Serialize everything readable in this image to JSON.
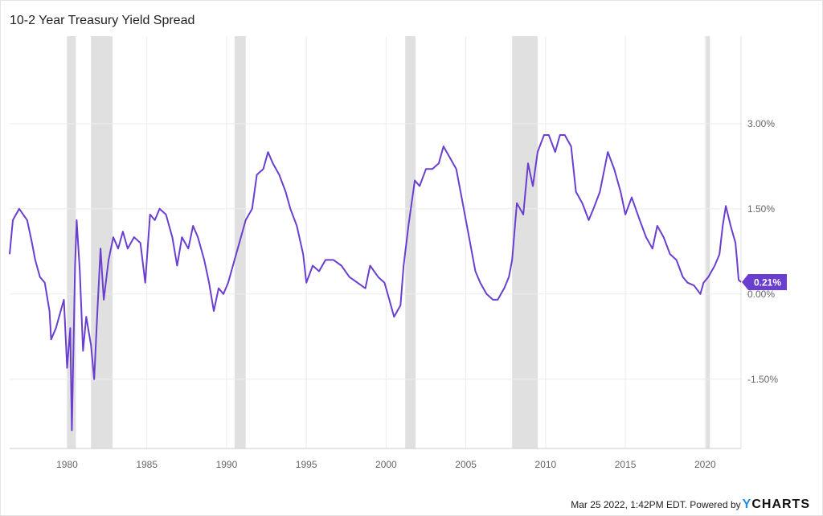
{
  "chart_data": {
    "type": "line",
    "title": "10-2 Year Treasury Yield Spread",
    "xlabel": "",
    "ylabel": "",
    "xlim": [
      1976.4,
      2022.25
    ],
    "ylim": [
      -2.72,
      4.54
    ],
    "x_ticks": [
      1980,
      1985,
      1990,
      1995,
      2000,
      2005,
      2010,
      2015,
      2020
    ],
    "x_tick_labels": [
      "1980",
      "1985",
      "1990",
      "1995",
      "2000",
      "2005",
      "2010",
      "2015",
      "2020"
    ],
    "y_ticks": [
      3,
      1.5,
      0,
      -1.5
    ],
    "y_tick_labels": [
      "3.00%",
      "1.50%",
      "0.00%",
      "-1.50%"
    ],
    "grid": true,
    "line_color": "#6a3fd0",
    "recession_color": "#e0e0e0",
    "recessions": [
      [
        1980.0,
        1980.55
      ],
      [
        1981.5,
        1982.85
      ],
      [
        1990.5,
        1991.2
      ],
      [
        2001.2,
        2001.85
      ],
      [
        2007.9,
        2009.5
      ],
      [
        2020.05,
        2020.3
      ]
    ],
    "last_value_label": "0.21%",
    "last_value": 0.21,
    "series": [
      {
        "name": "10-2 Year Treasury Yield Spread",
        "x": [
          1976.4,
          1976.6,
          1977.0,
          1977.5,
          1977.8,
          1978.0,
          1978.3,
          1978.6,
          1978.9,
          1979.0,
          1979.3,
          1979.6,
          1979.8,
          1980.0,
          1980.2,
          1980.3,
          1980.5,
          1980.6,
          1980.8,
          1981.0,
          1981.2,
          1981.5,
          1981.7,
          1981.9,
          1982.1,
          1982.3,
          1982.6,
          1982.9,
          1983.2,
          1983.5,
          1983.8,
          1984.2,
          1984.6,
          1984.9,
          1985.2,
          1985.5,
          1985.8,
          1986.2,
          1986.6,
          1986.9,
          1987.2,
          1987.6,
          1987.9,
          1988.2,
          1988.6,
          1988.9,
          1989.2,
          1989.5,
          1989.8,
          1990.1,
          1990.5,
          1990.8,
          1991.2,
          1991.6,
          1991.9,
          1992.3,
          1992.6,
          1992.9,
          1993.3,
          1993.7,
          1994.0,
          1994.4,
          1994.8,
          1995.0,
          1995.4,
          1995.8,
          1996.2,
          1996.7,
          1997.2,
          1997.7,
          1998.2,
          1998.7,
          1999.0,
          1999.5,
          1999.9,
          2000.2,
          2000.5,
          2000.9,
          2001.1,
          2001.4,
          2001.8,
          2002.1,
          2002.5,
          2002.9,
          2003.3,
          2003.6,
          2004.0,
          2004.4,
          2004.8,
          2005.2,
          2005.6,
          2005.9,
          2006.3,
          2006.7,
          2007.0,
          2007.4,
          2007.7,
          2007.9,
          2008.2,
          2008.6,
          2008.9,
          2009.2,
          2009.5,
          2009.9,
          2010.2,
          2010.6,
          2010.9,
          2011.2,
          2011.6,
          2011.9,
          2012.3,
          2012.7,
          2013.0,
          2013.4,
          2013.9,
          2014.3,
          2014.7,
          2015.0,
          2015.4,
          2015.9,
          2016.3,
          2016.7,
          2017.0,
          2017.4,
          2017.8,
          2018.2,
          2018.6,
          2018.9,
          2019.3,
          2019.7,
          2019.9,
          2020.2,
          2020.6,
          2020.9,
          2021.1,
          2021.3,
          2021.6,
          2021.9,
          2022.0,
          2022.1,
          2022.25
        ],
        "values": [
          0.7,
          1.3,
          1.5,
          1.3,
          0.9,
          0.6,
          0.3,
          0.2,
          -0.3,
          -0.8,
          -0.6,
          -0.3,
          -0.1,
          -1.3,
          -0.6,
          -2.4,
          0.5,
          1.3,
          0.4,
          -1.0,
          -0.4,
          -0.9,
          -1.5,
          -0.3,
          0.8,
          -0.1,
          0.6,
          1.0,
          0.8,
          1.1,
          0.8,
          1.0,
          0.9,
          0.2,
          1.4,
          1.3,
          1.5,
          1.4,
          1.0,
          0.5,
          1.0,
          0.8,
          1.2,
          1.0,
          0.6,
          0.2,
          -0.3,
          0.1,
          0.0,
          0.2,
          0.6,
          0.9,
          1.3,
          1.5,
          2.1,
          2.2,
          2.5,
          2.3,
          2.1,
          1.8,
          1.5,
          1.2,
          0.7,
          0.2,
          0.5,
          0.4,
          0.6,
          0.6,
          0.5,
          0.3,
          0.2,
          0.1,
          0.5,
          0.3,
          0.2,
          -0.1,
          -0.4,
          -0.2,
          0.5,
          1.2,
          2.0,
          1.9,
          2.2,
          2.2,
          2.3,
          2.6,
          2.4,
          2.2,
          1.6,
          1.0,
          0.4,
          0.2,
          0.0,
          -0.1,
          -0.1,
          0.1,
          0.3,
          0.6,
          1.6,
          1.4,
          2.3,
          1.9,
          2.5,
          2.8,
          2.8,
          2.5,
          2.8,
          2.8,
          2.6,
          1.8,
          1.6,
          1.3,
          1.5,
          1.8,
          2.5,
          2.2,
          1.8,
          1.4,
          1.7,
          1.3,
          1.0,
          0.8,
          1.2,
          1.0,
          0.7,
          0.6,
          0.3,
          0.2,
          0.15,
          0.0,
          0.2,
          0.3,
          0.5,
          0.7,
          1.2,
          1.55,
          1.2,
          0.9,
          0.6,
          0.25,
          0.21
        ]
      }
    ]
  },
  "footer": {
    "timestamp": "Mar 25 2022, 1:42PM EDT. Powered by",
    "logo_y": "Y",
    "logo_rest": "CHARTS"
  }
}
